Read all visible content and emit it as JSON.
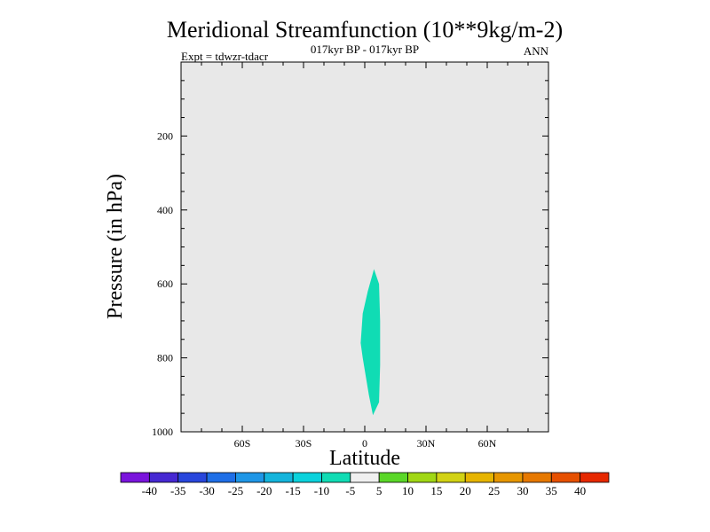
{
  "chart_data": {
    "type": "contour",
    "title": "Meridional Streamfunction (10**9kg/m-2)",
    "subtitle": "017kyr BP - 017kyr BP",
    "left_label": "Expt = tdwzr-tdacr",
    "right_label": "ANN",
    "xlabel": "Latitude",
    "ylabel": "Pressure (in hPa)",
    "xlim": [
      -90,
      90
    ],
    "ylim": [
      1000,
      0
    ],
    "x_ticks": [
      {
        "value": -60,
        "label": "60S"
      },
      {
        "value": -30,
        "label": "30S"
      },
      {
        "value": 0,
        "label": "0"
      },
      {
        "value": 30,
        "label": "30N"
      },
      {
        "value": 60,
        "label": "60N"
      }
    ],
    "y_ticks": [
      {
        "value": 200,
        "label": "200"
      },
      {
        "value": 400,
        "label": "400"
      },
      {
        "value": 600,
        "label": "600"
      },
      {
        "value": 800,
        "label": "800"
      },
      {
        "value": 1000,
        "label": "1000"
      }
    ],
    "background_fill": "#e8e8e8",
    "regions": [
      {
        "level": "-10 to -5",
        "color": "#10dcb4",
        "points": [
          [
            4.5,
            560
          ],
          [
            7,
            600
          ],
          [
            7.5,
            700
          ],
          [
            7.5,
            820
          ],
          [
            7,
            920
          ],
          [
            4,
            955
          ],
          [
            2,
            900
          ],
          [
            -1,
            800
          ],
          [
            -2,
            760
          ],
          [
            -1,
            680
          ],
          [
            1.5,
            620
          ]
        ]
      }
    ],
    "colorbar": {
      "colors": [
        "#7a14dc",
        "#4628d2",
        "#2846dc",
        "#1e6ee6",
        "#1e96e6",
        "#14b4dc",
        "#0ad2dc",
        "#10dcb4",
        "#f0f0f0",
        "#5ad728",
        "#a0d714",
        "#d2d214",
        "#e6b400",
        "#e69600",
        "#e67800",
        "#e65000",
        "#e62800"
      ],
      "labels": [
        "-40",
        "-35",
        "-30",
        "-25",
        "-20",
        "-15",
        "-10",
        "-5",
        "5",
        "10",
        "15",
        "20",
        "25",
        "30",
        "35",
        "40"
      ]
    }
  }
}
